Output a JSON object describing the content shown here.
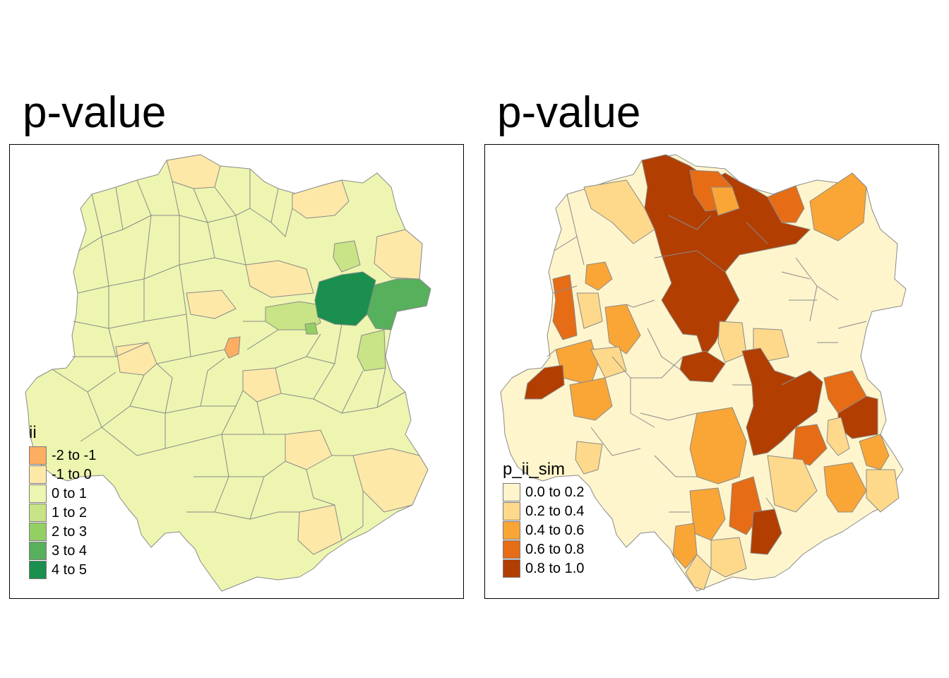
{
  "panels": [
    {
      "title": "p-value",
      "legend": {
        "title": "ii",
        "classes": [
          {
            "label": "-2 to -1",
            "color": "#fdae61"
          },
          {
            "label": "-1 to 0",
            "color": "#fee8a8"
          },
          {
            "label": "0 to 1",
            "color": "#eef5b0"
          },
          {
            "label": "1 to 2",
            "color": "#c8e486"
          },
          {
            "label": "2 to 3",
            "color": "#94cf64"
          },
          {
            "label": "3 to 4",
            "color": "#57b05c"
          },
          {
            "label": "4 to 5",
            "color": "#1a8f4e"
          }
        ]
      }
    },
    {
      "title": "p-value",
      "legend": {
        "title": "p_ii_sim",
        "classes": [
          {
            "label": "0.0 to 0.2",
            "color": "#fff5cc"
          },
          {
            "label": "0.2 to 0.4",
            "color": "#fed98b"
          },
          {
            "label": "0.4 to 0.6",
            "color": "#f9a637"
          },
          {
            "label": "0.6 to 0.8",
            "color": "#e66c16"
          },
          {
            "label": "0.8 to 1.0",
            "color": "#b23e02"
          }
        ]
      }
    }
  ]
}
